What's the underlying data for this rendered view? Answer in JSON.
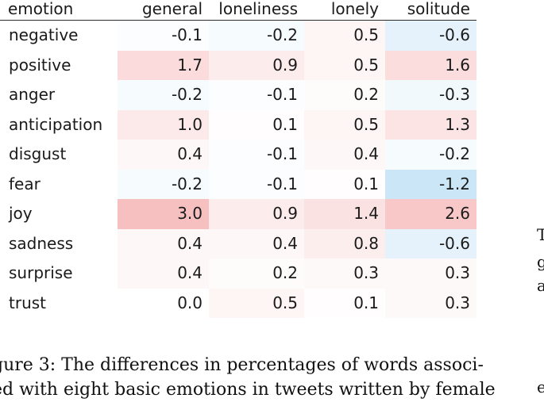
{
  "table": {
    "header": [
      "emotion",
      "general",
      "loneliness",
      "lonely",
      "solitude"
    ],
    "rows": [
      {
        "label": "negative",
        "values": [
          "-0.1",
          "-0.2",
          "0.5",
          "-0.6"
        ]
      },
      {
        "label": "positive",
        "values": [
          "1.7",
          "0.9",
          "0.5",
          "1.6"
        ]
      },
      {
        "label": "anger",
        "values": [
          "-0.2",
          "-0.1",
          "0.2",
          "-0.3"
        ]
      },
      {
        "label": "anticipation",
        "values": [
          "1.0",
          "0.1",
          "0.5",
          "1.3"
        ]
      },
      {
        "label": "disgust",
        "values": [
          "0.4",
          "-0.1",
          "0.4",
          "-0.2"
        ]
      },
      {
        "label": "fear",
        "values": [
          "-0.2",
          "-0.1",
          "0.1",
          "-1.2"
        ]
      },
      {
        "label": "joy",
        "values": [
          "3.0",
          "0.9",
          "1.4",
          "2.6"
        ]
      },
      {
        "label": "sadness",
        "values": [
          "0.4",
          "0.4",
          "0.8",
          "-0.6"
        ]
      },
      {
        "label": "surprise",
        "values": [
          "0.4",
          "0.2",
          "0.3",
          "0.3"
        ]
      },
      {
        "label": "trust",
        "values": [
          "0.0",
          "0.5",
          "0.1",
          "0.3"
        ]
      }
    ],
    "colors": {
      "positive_max": "#f6b5b5",
      "negative_max": "#b9ddf3"
    }
  },
  "caption": {
    "line1": "gure 3: The differences in percentages of words associ-",
    "line2": "ed with eight basic emotions in tweets written by female"
  },
  "side_text": {
    "t": "T",
    "g": "g",
    "a": "a",
    "e": "e"
  }
}
